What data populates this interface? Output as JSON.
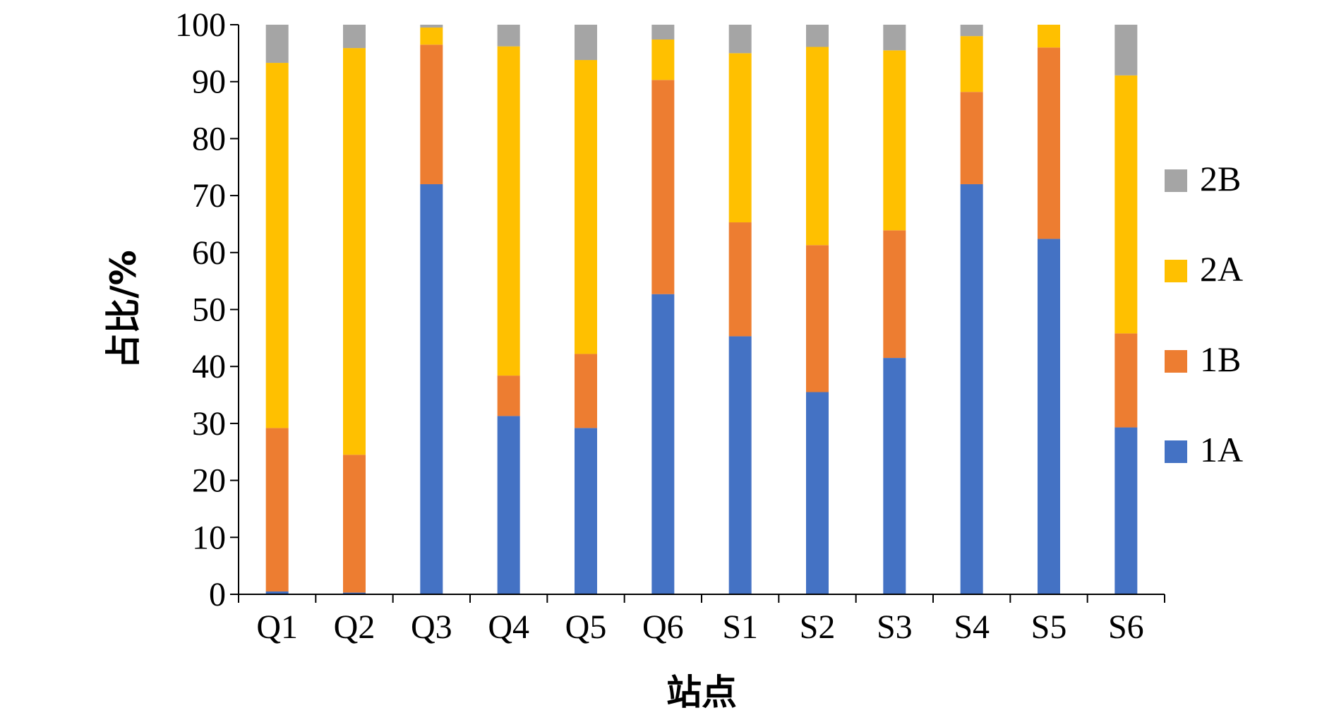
{
  "chart_data": {
    "type": "bar",
    "stacked": true,
    "categories": [
      "Q1",
      "Q2",
      "Q3",
      "Q4",
      "Q5",
      "Q6",
      "S1",
      "S2",
      "S3",
      "S4",
      "S5",
      "S6"
    ],
    "series": [
      {
        "name": "1A",
        "color": "#4472C4",
        "values": [
          0.5,
          0.3,
          72.0,
          31.3,
          29.2,
          52.7,
          45.3,
          35.5,
          41.5,
          72.0,
          62.4,
          29.3
        ]
      },
      {
        "name": "1B",
        "color": "#ED7D31",
        "values": [
          28.7,
          24.2,
          24.5,
          7.1,
          13.0,
          37.6,
          20.0,
          25.8,
          22.4,
          16.2,
          33.6,
          16.5
        ]
      },
      {
        "name": "2A",
        "color": "#FFC000",
        "values": [
          64.1,
          71.4,
          3.0,
          57.8,
          51.6,
          7.1,
          29.7,
          34.8,
          31.6,
          9.8,
          4.0,
          45.3
        ]
      },
      {
        "name": "2B",
        "color": "#A5A5A5",
        "values": [
          6.7,
          4.1,
          0.5,
          3.8,
          6.2,
          2.6,
          5.0,
          3.9,
          4.5,
          2.0,
          0.0,
          8.9
        ]
      }
    ],
    "xlabel": "站点",
    "ylabel": "占比/%",
    "ylim": [
      0,
      100
    ],
    "yticks": [
      0,
      10,
      20,
      30,
      40,
      50,
      60,
      70,
      80,
      90,
      100
    ],
    "grid": false,
    "legend": {
      "position": "right",
      "order": [
        "2B",
        "2A",
        "1B",
        "1A"
      ]
    }
  }
}
